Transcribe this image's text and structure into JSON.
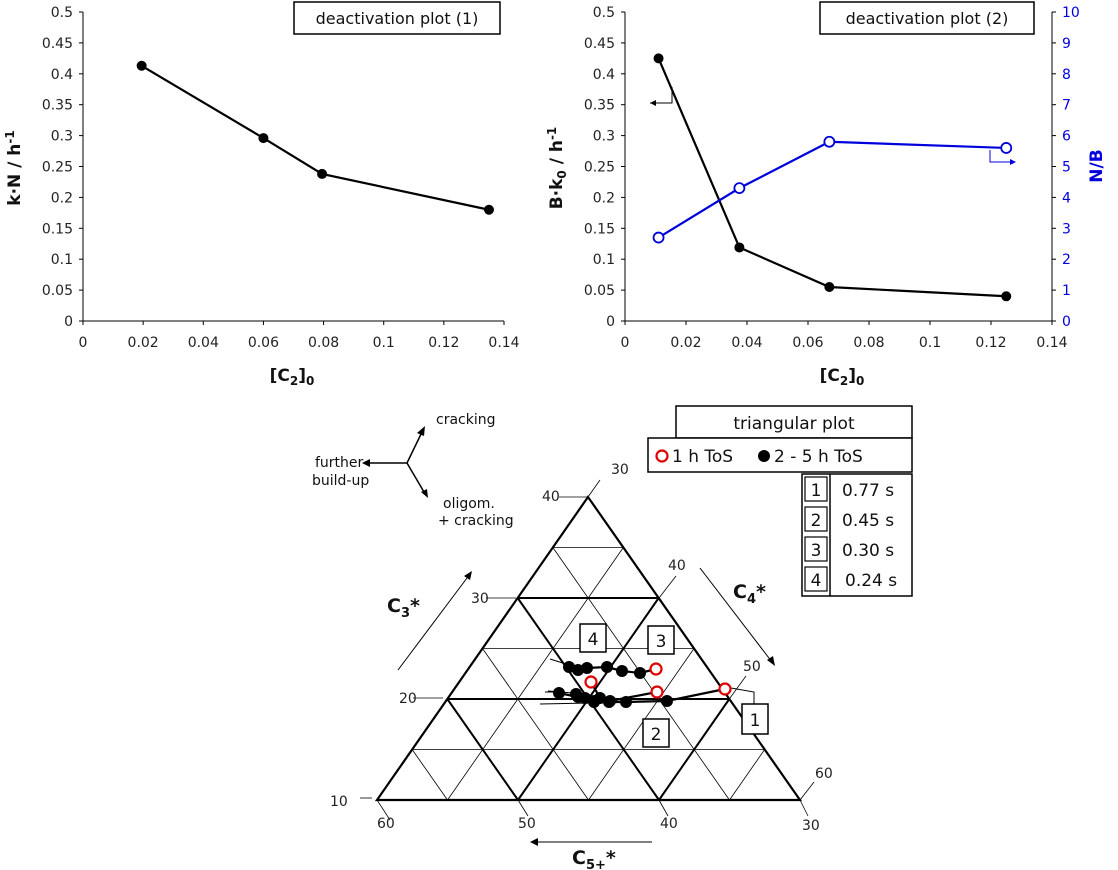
{
  "chart_data": [
    {
      "type": "line",
      "title": "deactivation plot (1)",
      "xlabel": "[C2]0",
      "ylabel": "k·N / h-1",
      "xlim": [
        0,
        0.14
      ],
      "ylim": [
        0,
        0.5
      ],
      "x_ticks": [
        "0",
        "0.02",
        "0.04",
        "0.06",
        "0.08",
        "0.1",
        "0.12",
        "0.14"
      ],
      "y_ticks": [
        "0",
        "0.05",
        "0.1",
        "0.15",
        "0.2",
        "0.25",
        "0.3",
        "0.35",
        "0.4",
        "0.45",
        "0.5"
      ],
      "series": [
        {
          "x": [
            0.0195,
            0.06,
            0.0795,
            0.135
          ],
          "y": [
            0.413,
            0.296,
            0.238,
            0.18
          ],
          "color": "#000000"
        }
      ]
    },
    {
      "type": "line",
      "title": "deactivation plot (2)",
      "xlabel": "[C2]0",
      "ylabel": "B·k0 / h-1",
      "y2label": "N/B",
      "xlim": [
        0,
        0.14
      ],
      "ylim": [
        0,
        0.5
      ],
      "y2lim": [
        0,
        10
      ],
      "x_ticks": [
        "0",
        "0.02",
        "0.04",
        "0.06",
        "0.08",
        "0.1",
        "0.12",
        "0.14"
      ],
      "y_ticks": [
        "0",
        "0.05",
        "0.1",
        "0.15",
        "0.2",
        "0.25",
        "0.3",
        "0.35",
        "0.4",
        "0.45",
        "0.5"
      ],
      "y2_ticks": [
        "0",
        "1",
        "2",
        "3",
        "4",
        "5",
        "6",
        "7",
        "8",
        "9",
        "10"
      ],
      "series": [
        {
          "x": [
            0.011,
            0.0375,
            0.067,
            0.125
          ],
          "y": [
            0.425,
            0.119,
            0.055,
            0.04
          ],
          "axis": "left",
          "color": "#000000",
          "marker": "filled"
        },
        {
          "x": [
            0.011,
            0.0375,
            0.067,
            0.125
          ],
          "y": [
            2.7,
            4.3,
            5.8,
            5.6
          ],
          "axis": "right",
          "color": "#0000dd",
          "marker": "open"
        }
      ]
    },
    {
      "type": "scatter",
      "title": "triangular plot",
      "axes": {
        "left": "C3*",
        "right": "C4*",
        "bottom": "C5+*"
      },
      "left_ticks": [
        "10",
        "20",
        "30",
        "40"
      ],
      "right_ticks": [
        "30",
        "40",
        "50",
        "60"
      ],
      "bottom_ticks": [
        "60",
        "50",
        "40",
        "30"
      ],
      "legend": [
        {
          "label": "1 h ToS",
          "marker": "open-red"
        },
        {
          "label": "2 - 5 h ToS",
          "marker": "filled-black"
        }
      ],
      "residence_times": [
        {
          "id": "1",
          "value": "0.77 s"
        },
        {
          "id": "2",
          "value": "0.45 s"
        },
        {
          "id": "3",
          "value": "0.30 s"
        },
        {
          "id": "4",
          "value": "0.24 s"
        }
      ],
      "direction_labels": [
        "cracking",
        "further build-up",
        "oligom. + cracking"
      ]
    }
  ]
}
